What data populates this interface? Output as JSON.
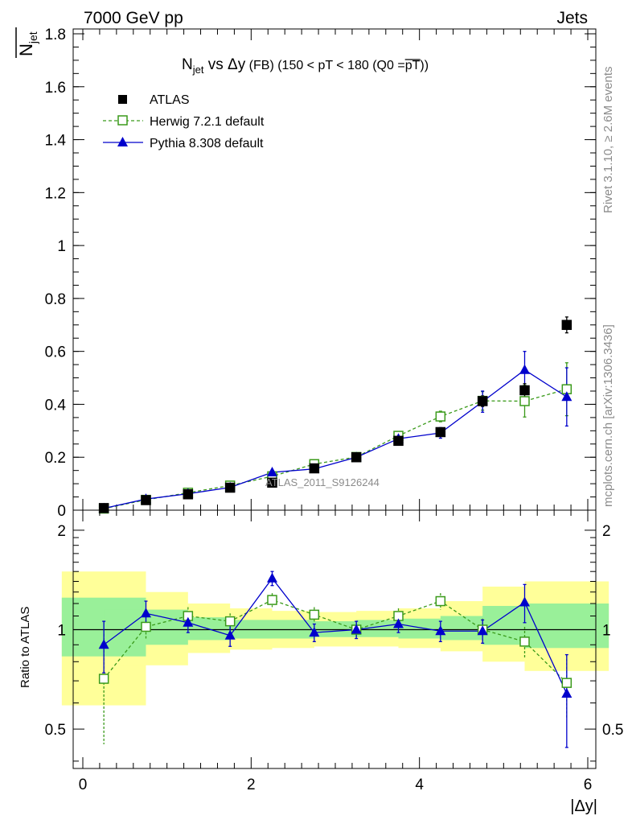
{
  "header": {
    "left": "7000 GeV pp",
    "right": "Jets"
  },
  "side_labels": {
    "rivet": "Rivet 3.1.10, ≥ 2.6M events",
    "mcplots": "mcplots.cern.ch [arXiv:1306.3436]"
  },
  "watermark": "ATLAS_2011_S9126244",
  "colors": {
    "atlas": "#000000",
    "herwig": "#3a9a1a",
    "pythia": "#0000cc",
    "band_inner": "#99f099",
    "band_outer": "#ffff99"
  },
  "chart_data": [
    {
      "type": "line",
      "title": "N_jet vs Δy (FB) (150 < pT < 180 (Q0 = pT))",
      "title_parts": {
        "main": "N",
        "sub": "jet",
        "vs": " vs Δy",
        "fb": " (FB)",
        "range": " (150 < pT < 180 (Q0 =",
        "pt": "pT",
        "close": "))"
      },
      "xlabel": "|Δy|",
      "ylabel": "N_jet",
      "ylabel_parts": {
        "main": "N",
        "sub": "jet"
      },
      "xlim": [
        0,
        6
      ],
      "ylim": [
        0,
        1.8
      ],
      "x_ticks": [
        "0",
        "2",
        "4",
        "6"
      ],
      "y_ticks": [
        "0",
        "0.2",
        "0.4",
        "0.6",
        "0.8",
        "1",
        "1.2",
        "1.4",
        "1.6",
        "1.8"
      ],
      "x": [
        0.25,
        0.75,
        1.25,
        1.75,
        2.25,
        2.75,
        3.25,
        3.75,
        4.25,
        4.75,
        5.25,
        5.75
      ],
      "legend_position": "top-left",
      "series": [
        {
          "name": "ATLAS",
          "style": "data",
          "values": [
            0.008,
            0.038,
            0.06,
            0.085,
            0.104,
            0.158,
            0.2,
            0.262,
            0.295,
            0.412,
            0.453,
            0.7
          ],
          "errors": [
            0.001,
            0.002,
            0.003,
            0.004,
            0.005,
            0.006,
            0.008,
            0.01,
            0.015,
            0.02,
            0.025,
            0.03
          ]
        },
        {
          "name": "Herwig 7.2.1 default",
          "style": "dashed",
          "values": [
            0.006,
            0.039,
            0.066,
            0.093,
            0.128,
            0.174,
            0.201,
            0.281,
            0.354,
            0.413,
            0.412,
            0.457
          ],
          "errors": [
            0.002,
            0.003,
            0.004,
            0.005,
            0.007,
            0.008,
            0.009,
            0.013,
            0.02,
            0.035,
            0.06,
            0.1
          ]
        },
        {
          "name": "Pythia 8.308 default",
          "style": "solid",
          "values": [
            0.007,
            0.042,
            0.062,
            0.086,
            0.143,
            0.156,
            0.2,
            0.27,
            0.292,
            0.41,
            0.53,
            0.428
          ],
          "errors": [
            0.002,
            0.003,
            0.004,
            0.005,
            0.008,
            0.008,
            0.009,
            0.012,
            0.02,
            0.04,
            0.07,
            0.11
          ]
        }
      ]
    },
    {
      "type": "line",
      "ylabel": "Ratio to ATLAS",
      "xlim": [
        0,
        6
      ],
      "ylim": [
        0.38,
        2.3
      ],
      "y_ticks": [
        "0.5",
        "1",
        "2"
      ],
      "x": [
        0.25,
        0.75,
        1.25,
        1.75,
        2.25,
        2.75,
        3.25,
        3.75,
        4.25,
        4.75,
        5.25,
        5.75
      ],
      "bands": {
        "outer": {
          "lo": [
            0.59,
            0.78,
            0.85,
            0.87,
            0.88,
            0.89,
            0.89,
            0.89,
            0.88,
            0.86,
            0.8,
            0.75
          ],
          "hi": [
            1.5,
            1.3,
            1.2,
            1.16,
            1.14,
            1.13,
            1.13,
            1.14,
            1.16,
            1.22,
            1.35,
            1.4
          ]
        },
        "inner": {
          "lo": [
            0.83,
            0.9,
            0.93,
            0.94,
            0.94,
            0.95,
            0.95,
            0.95,
            0.94,
            0.93,
            0.9,
            0.88
          ],
          "hi": [
            1.25,
            1.15,
            1.09,
            1.07,
            1.07,
            1.06,
            1.06,
            1.07,
            1.08,
            1.1,
            1.18,
            1.2
          ]
        }
      },
      "series": [
        {
          "name": "Herwig 7.2.1 default",
          "values": [
            0.71,
            1.02,
            1.1,
            1.06,
            1.23,
            1.11,
            1.0,
            1.1,
            1.22,
            1.0,
            0.92,
            0.69
          ],
          "errors": [
            0.26,
            0.08,
            0.07,
            0.06,
            0.06,
            0.06,
            0.05,
            0.06,
            0.07,
            0.08,
            0.1,
            0.15
          ]
        },
        {
          "name": "Pythia 8.308 default",
          "values": [
            0.9,
            1.12,
            1.05,
            0.96,
            1.43,
            0.98,
            1.0,
            1.04,
            0.99,
            0.99,
            1.21,
            0.64
          ],
          "errors": [
            0.16,
            0.1,
            0.07,
            0.07,
            0.07,
            0.06,
            0.06,
            0.06,
            0.07,
            0.08,
            0.16,
            0.2
          ]
        }
      ]
    }
  ]
}
